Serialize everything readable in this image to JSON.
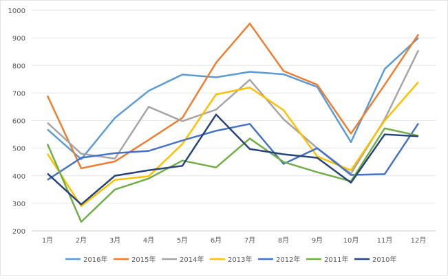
{
  "chart_data": {
    "type": "line",
    "title": "",
    "xlabel": "",
    "ylabel": "",
    "ylim": [
      200,
      1000
    ],
    "yticks": [
      200,
      300,
      400,
      500,
      600,
      700,
      800,
      900,
      1000
    ],
    "grid": true,
    "legend_position": "bottom",
    "categories": [
      "1月",
      "2月",
      "3月",
      "4月",
      "5月",
      "6月",
      "7月",
      "8月",
      "9月",
      "10月",
      "11月",
      "12月"
    ],
    "series": [
      {
        "name": "2016年",
        "color": "#5B9BD5",
        "values": [
          568,
          460,
          610,
          708,
          767,
          757,
          777,
          768,
          722,
          522,
          787,
          900
        ]
      },
      {
        "name": "2015年",
        "color": "#ED7D31",
        "values": [
          690,
          427,
          452,
          530,
          610,
          810,
          952,
          780,
          730,
          553,
          730,
          913
        ]
      },
      {
        "name": "2014年",
        "color": "#A5A5A5",
        "values": [
          592,
          480,
          462,
          650,
          598,
          640,
          748,
          605,
          500,
          408,
          605,
          855
        ]
      },
      {
        "name": "2013年",
        "color": "#FFC000",
        "values": [
          480,
          290,
          385,
          398,
          515,
          695,
          720,
          638,
          470,
          420,
          600,
          740
        ]
      },
      {
        "name": "2012年",
        "color": "#4472C4",
        "values": [
          385,
          465,
          482,
          490,
          528,
          563,
          588,
          443,
          500,
          403,
          406,
          590
        ]
      },
      {
        "name": "2011年",
        "color": "#70AD47",
        "values": [
          515,
          233,
          350,
          390,
          455,
          430,
          535,
          450,
          413,
          380,
          572,
          545
        ]
      },
      {
        "name": "2010年",
        "color": "#264478",
        "values": [
          408,
          296,
          400,
          420,
          436,
          622,
          497,
          478,
          465,
          375,
          550,
          543
        ]
      }
    ]
  }
}
